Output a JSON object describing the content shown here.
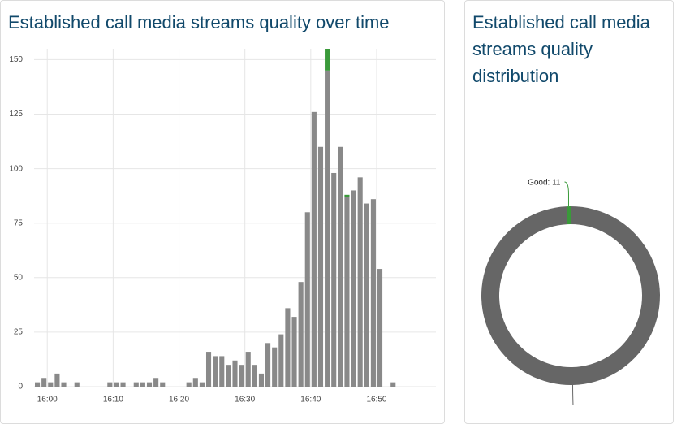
{
  "chart_data": [
    {
      "type": "bar",
      "stacked": true,
      "title": "Established call media streams quality over time",
      "x": [
        -2,
        -1,
        0,
        1,
        2,
        3,
        4,
        5,
        6,
        7,
        8,
        9,
        10,
        11,
        12,
        13,
        14,
        15,
        16,
        17,
        18,
        19,
        20,
        21,
        22,
        23,
        24,
        25,
        26,
        27,
        28,
        29,
        30,
        31,
        32,
        33,
        34,
        35,
        36,
        37,
        38,
        39,
        40,
        41,
        42,
        43,
        44,
        45,
        46,
        47,
        48,
        49,
        50,
        51,
        52
      ],
      "series": [
        {
          "color": "#898989",
          "values": [
            2,
            4,
            2,
            6,
            2,
            0,
            2,
            0,
            0,
            0,
            0,
            2,
            2,
            2,
            0,
            2,
            2,
            2,
            4,
            2,
            0,
            0,
            0,
            2,
            4,
            2,
            16,
            14,
            14,
            10,
            12,
            10,
            16,
            10,
            6,
            20,
            18,
            24,
            36,
            32,
            48,
            80,
            126,
            110,
            145,
            98,
            110,
            87,
            90,
            96,
            84,
            86,
            54,
            0,
            2
          ]
        },
        {
          "name": "Good",
          "color": "#3a9a3a",
          "values": [
            0,
            0,
            0,
            0,
            0,
            0,
            0,
            0,
            0,
            0,
            0,
            0,
            0,
            0,
            0,
            0,
            0,
            0,
            0,
            0,
            0,
            0,
            0,
            0,
            0,
            0,
            0,
            0,
            0,
            0,
            0,
            0,
            0,
            0,
            0,
            0,
            0,
            0,
            0,
            0,
            0,
            0,
            0,
            0,
            10,
            0,
            0,
            1,
            0,
            0,
            0,
            0,
            0,
            0,
            0
          ]
        }
      ],
      "xlim": [
        -2,
        59
      ],
      "xticks": [
        {
          "value": 0,
          "label": "16:00"
        },
        {
          "value": 10,
          "label": "16:10"
        },
        {
          "value": 20,
          "label": "16:20"
        },
        {
          "value": 30,
          "label": "16:30"
        },
        {
          "value": 40,
          "label": "16:40"
        },
        {
          "value": 50,
          "label": "16:50"
        }
      ],
      "ylim": [
        0,
        155
      ],
      "yticks": [
        0,
        25,
        50,
        75,
        100,
        125,
        150
      ],
      "grid": true
    },
    {
      "type": "pie",
      "donut": true,
      "title": "Established call media streams quality distribution",
      "categories": [
        "Good",
        null
      ],
      "values": [
        11,
        1498
      ],
      "value_labels": [
        "Good: 11",
        null
      ],
      "colors": [
        "#3a9a3a",
        "#666666"
      ]
    }
  ]
}
